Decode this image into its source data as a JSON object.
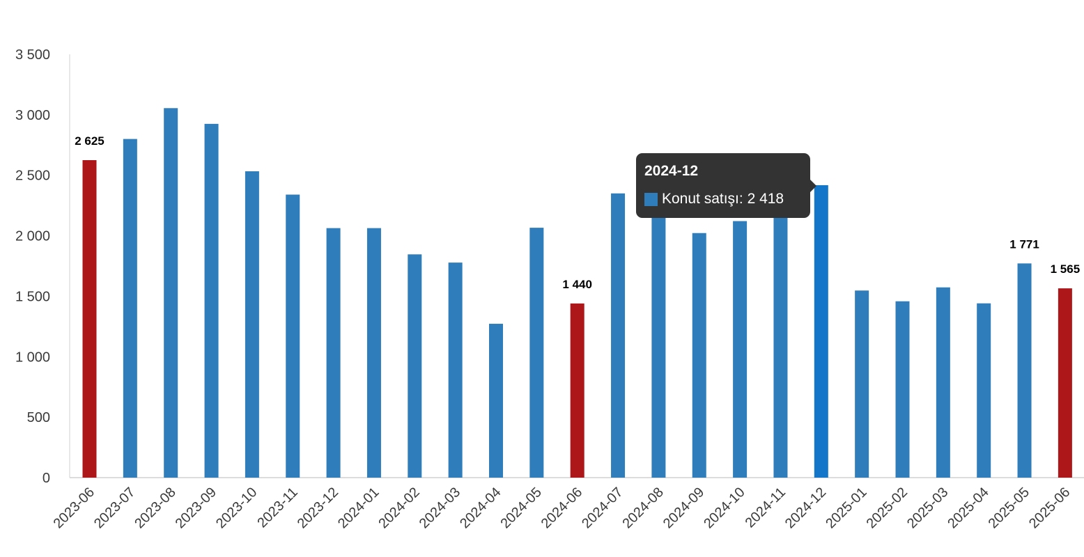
{
  "chart_data": {
    "type": "bar",
    "title": "",
    "xlabel": "",
    "ylabel": "",
    "ylim": [
      0,
      3500
    ],
    "y_ticks": [
      0,
      500,
      1000,
      1500,
      2000,
      2500,
      3000,
      3500
    ],
    "y_tick_labels": [
      "0",
      "500",
      "1 000",
      "1 500",
      "2 000",
      "2 500",
      "3 000",
      "3 500"
    ],
    "categories": [
      "2023-06",
      "2023-07",
      "2023-08",
      "2023-09",
      "2023-10",
      "2023-11",
      "2023-12",
      "2024-01",
      "2024-02",
      "2024-03",
      "2024-04",
      "2024-05",
      "2024-06",
      "2024-07",
      "2024-08",
      "2024-09",
      "2024-10",
      "2024-11",
      "2024-12",
      "2025-01",
      "2025-02",
      "2025-03",
      "2025-04",
      "2025-05",
      "2025-06"
    ],
    "series": [
      {
        "name": "Konut satışı",
        "values": [
          2625,
          2800,
          3055,
          2925,
          2533,
          2340,
          2063,
          2063,
          1846,
          1778,
          1272,
          2066,
          1440,
          2350,
          2270,
          2022,
          2121,
          2185,
          2418,
          1547,
          1458,
          1573,
          1441,
          1771,
          1565
        ]
      }
    ],
    "colors": {
      "default": "#2f7dba",
      "highlight": "#ad1719",
      "hover": "#1476c8"
    },
    "highlighted_categories": [
      "2023-06",
      "2024-06",
      "2025-06"
    ],
    "hovered_category": "2024-12",
    "data_labels": [
      {
        "category": "2023-06",
        "text": "2 625"
      },
      {
        "category": "2024-06",
        "text": "1 440"
      },
      {
        "category": "2025-05",
        "text": "1 771"
      },
      {
        "category": "2025-06",
        "text": "1 565"
      }
    ],
    "legend": "none"
  },
  "tooltip": {
    "title": "2024-12",
    "series_label": "Konut satışı: 2 418",
    "swatch_color": "#2f7dba"
  }
}
